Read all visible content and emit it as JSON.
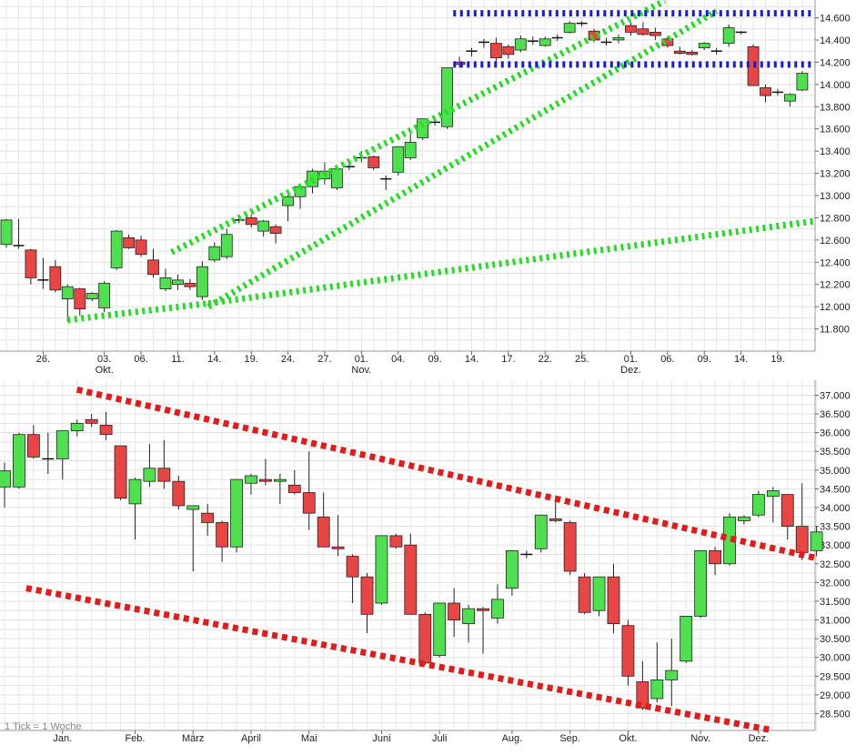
{
  "chart_data": [
    {
      "type": "candlestick",
      "title": "",
      "y_ticks": [
        "14.600",
        "14.400",
        "14.200",
        "14.000",
        "13.800",
        "13.600",
        "13.400",
        "13.200",
        "13.000",
        "12.800",
        "12.600",
        "12.400",
        "12.200",
        "12.000",
        "11.800"
      ],
      "ylim": [
        11600,
        14760
      ],
      "grid": true,
      "x_ticks": [
        {
          "label": "26.",
          "i": 3.0
        },
        {
          "label": "03.",
          "sublabel": "Okt.",
          "i": 8.0
        },
        {
          "label": "06.",
          "i": 11.0
        },
        {
          "label": "11.",
          "i": 14.0
        },
        {
          "label": "14.",
          "i": 17.0
        },
        {
          "label": "19.",
          "i": 20.0
        },
        {
          "label": "24.",
          "i": 23.0
        },
        {
          "label": "27.",
          "i": 26.0
        },
        {
          "label": "01.",
          "sublabel": "Nov.",
          "i": 29.0
        },
        {
          "label": "04.",
          "i": 32.0
        },
        {
          "label": "09.",
          "i": 35.0
        },
        {
          "label": "14.",
          "i": 38.0
        },
        {
          "label": "17.",
          "i": 41.0
        },
        {
          "label": "22.",
          "i": 44.0
        },
        {
          "label": "25.",
          "i": 47.0
        },
        {
          "label": "01.",
          "sublabel": "Dez.",
          "i": 51.0
        },
        {
          "label": "06.",
          "i": 54.0
        },
        {
          "label": "09.",
          "i": 57.0
        },
        {
          "label": "14.",
          "i": 60.0
        },
        {
          "label": "19.",
          "i": 63.0
        }
      ],
      "candles": [
        {
          "o": 12560,
          "h": 12790,
          "l": 12530,
          "c": 12780
        },
        {
          "o": 12550,
          "h": 12790,
          "l": 12520,
          "c": 12540
        },
        {
          "o": 12510,
          "h": 12520,
          "l": 12200,
          "c": 12260
        },
        {
          "o": 12240,
          "h": 12440,
          "l": 12160,
          "c": 12230
        },
        {
          "o": 12360,
          "h": 12420,
          "l": 12130,
          "c": 12150
        },
        {
          "o": 12070,
          "h": 12200,
          "l": 11870,
          "c": 12180
        },
        {
          "o": 12160,
          "h": 12170,
          "l": 11920,
          "c": 11980
        },
        {
          "o": 12070,
          "h": 12130,
          "l": 12050,
          "c": 12120
        },
        {
          "o": 11990,
          "h": 12230,
          "l": 11950,
          "c": 12210
        },
        {
          "o": 12350,
          "h": 12690,
          "l": 12330,
          "c": 12680
        },
        {
          "o": 12620,
          "h": 12650,
          "l": 12520,
          "c": 12530
        },
        {
          "o": 12600,
          "h": 12640,
          "l": 12450,
          "c": 12470
        },
        {
          "o": 12420,
          "h": 12520,
          "l": 12260,
          "c": 12290
        },
        {
          "o": 12160,
          "h": 12340,
          "l": 12140,
          "c": 12260
        },
        {
          "o": 12200,
          "h": 12290,
          "l": 12150,
          "c": 12240
        },
        {
          "o": 12210,
          "h": 12250,
          "l": 12150,
          "c": 12180
        },
        {
          "o": 12090,
          "h": 12410,
          "l": 12060,
          "c": 12360
        },
        {
          "o": 12420,
          "h": 12580,
          "l": 12400,
          "c": 12540
        },
        {
          "o": 12450,
          "h": 12700,
          "l": 12430,
          "c": 12650
        },
        {
          "o": 12780,
          "h": 12800,
          "l": 12750,
          "c": 12770
        },
        {
          "o": 12800,
          "h": 12830,
          "l": 12710,
          "c": 12740
        },
        {
          "o": 12680,
          "h": 12780,
          "l": 12630,
          "c": 12770
        },
        {
          "o": 12720,
          "h": 12740,
          "l": 12570,
          "c": 12660
        },
        {
          "o": 12910,
          "h": 13000,
          "l": 12770,
          "c": 12990
        },
        {
          "o": 12990,
          "h": 13100,
          "l": 12880,
          "c": 13080
        },
        {
          "o": 13080,
          "h": 13240,
          "l": 13020,
          "c": 13220
        },
        {
          "o": 13150,
          "h": 13300,
          "l": 13100,
          "c": 13220
        },
        {
          "o": 13070,
          "h": 13260,
          "l": 13050,
          "c": 13240
        },
        {
          "o": 13260,
          "h": 13290,
          "l": 13230,
          "c": 13260
        },
        {
          "o": 13330,
          "h": 13400,
          "l": 13300,
          "c": 13340
        },
        {
          "o": 13350,
          "h": 13360,
          "l": 13230,
          "c": 13250
        },
        {
          "o": 13150,
          "h": 13180,
          "l": 13050,
          "c": 13140
        },
        {
          "o": 13210,
          "h": 13440,
          "l": 13180,
          "c": 13440
        },
        {
          "o": 13340,
          "h": 13570,
          "l": 13320,
          "c": 13480
        },
        {
          "o": 13520,
          "h": 13690,
          "l": 13500,
          "c": 13690
        },
        {
          "o": 13660,
          "h": 13690,
          "l": 13630,
          "c": 13660
        },
        {
          "o": 13620,
          "h": 14150,
          "l": 13600,
          "c": 14150
        },
        {
          "o": 14200,
          "h": 14250,
          "l": 14150,
          "c": 14180
        },
        {
          "o": 14300,
          "h": 14330,
          "l": 14250,
          "c": 14300
        },
        {
          "o": 14370,
          "h": 14410,
          "l": 14330,
          "c": 14380
        },
        {
          "o": 14370,
          "h": 14420,
          "l": 14170,
          "c": 14240
        },
        {
          "o": 14340,
          "h": 14360,
          "l": 14230,
          "c": 14270
        },
        {
          "o": 14310,
          "h": 14440,
          "l": 14290,
          "c": 14410
        },
        {
          "o": 14390,
          "h": 14430,
          "l": 14360,
          "c": 14390
        },
        {
          "o": 14350,
          "h": 14430,
          "l": 14340,
          "c": 14410
        },
        {
          "o": 14410,
          "h": 14450,
          "l": 14390,
          "c": 14420
        },
        {
          "o": 14470,
          "h": 14570,
          "l": 14460,
          "c": 14550
        },
        {
          "o": 14540,
          "h": 14570,
          "l": 14520,
          "c": 14550
        },
        {
          "o": 14480,
          "h": 14500,
          "l": 14380,
          "c": 14400
        },
        {
          "o": 14380,
          "h": 14420,
          "l": 14350,
          "c": 14380
        },
        {
          "o": 14400,
          "h": 14450,
          "l": 14370,
          "c": 14420
        },
        {
          "o": 14530,
          "h": 14560,
          "l": 14440,
          "c": 14470
        },
        {
          "o": 14500,
          "h": 14560,
          "l": 14440,
          "c": 14450
        },
        {
          "o": 14470,
          "h": 14510,
          "l": 14400,
          "c": 14440
        },
        {
          "o": 14410,
          "h": 14430,
          "l": 14330,
          "c": 14350
        },
        {
          "o": 14300,
          "h": 14340,
          "l": 14270,
          "c": 14280
        },
        {
          "o": 14290,
          "h": 14310,
          "l": 14260,
          "c": 14270
        },
        {
          "o": 14330,
          "h": 14380,
          "l": 14310,
          "c": 14370
        },
        {
          "o": 14300,
          "h": 14330,
          "l": 14270,
          "c": 14300
        },
        {
          "o": 14370,
          "h": 14540,
          "l": 14340,
          "c": 14510
        },
        {
          "o": 14470,
          "h": 14480,
          "l": 14450,
          "c": 14460
        },
        {
          "o": 14340,
          "h": 14360,
          "l": 13990,
          "c": 13990
        },
        {
          "o": 13970,
          "h": 14000,
          "l": 13840,
          "c": 13900
        },
        {
          "o": 13930,
          "h": 13960,
          "l": 13900,
          "c": 13930
        },
        {
          "o": 13850,
          "h": 13920,
          "l": 13800,
          "c": 13910
        },
        {
          "o": 13950,
          "h": 14120,
          "l": 13940,
          "c": 14100
        }
      ],
      "trendlines": [
        {
          "color": "#22dd22",
          "x1": 13.5,
          "y1": 12490,
          "x2": 58.0,
          "y2": 14990
        },
        {
          "color": "#22dd22",
          "x1": 16.5,
          "y1": 12000,
          "x2": 58.0,
          "y2": 14660
        },
        {
          "color": "#22dd22",
          "x1": 5.0,
          "y1": 11880,
          "x2": 16.5,
          "y2": 12030
        },
        {
          "color": "#22dd22",
          "x1": 16.5,
          "y1": 12030,
          "x2": 68.0,
          "y2": 12800
        },
        {
          "color": "#1a1adc",
          "x1": 36.5,
          "y1": 14640,
          "x2": 68.0,
          "y2": 14640
        },
        {
          "color": "#1a1adc",
          "x1": 36.5,
          "y1": 14180,
          "x2": 68.0,
          "y2": 14180
        }
      ]
    },
    {
      "type": "candlestick",
      "title": "",
      "note": "1 Tick = 1 Woche",
      "y_ticks": [
        "37.000",
        "36.500",
        "36.000",
        "35.500",
        "35.000",
        "34.500",
        "34.000",
        "33.500",
        "33.000",
        "32.500",
        "32.000",
        "31.500",
        "31.000",
        "30.500",
        "30.000",
        "29.500",
        "29.000",
        "28.500"
      ],
      "ylim": [
        28050,
        37400
      ],
      "grid": true,
      "x_ticks": [
        {
          "label": "Jan.",
          "i": 4.0
        },
        {
          "label": "Feb.",
          "i": 9.0
        },
        {
          "label": "März",
          "i": 13.0
        },
        {
          "label": "April",
          "i": 17.0
        },
        {
          "label": "Mai",
          "i": 21.0
        },
        {
          "label": "Juni",
          "i": 26.0
        },
        {
          "label": "Juli",
          "i": 30.0
        },
        {
          "label": "Aug.",
          "i": 35.0
        },
        {
          "label": "Sep.",
          "i": 39.0
        },
        {
          "label": "Okt.",
          "i": 43.0
        },
        {
          "label": "Nov.",
          "i": 48.0
        },
        {
          "label": "Dez.",
          "i": 52.0
        }
      ],
      "candles": [
        {
          "o": 34550,
          "h": 35200,
          "l": 34000,
          "c": 34980
        },
        {
          "o": 34550,
          "h": 36000,
          "l": 34500,
          "c": 35950
        },
        {
          "o": 35950,
          "h": 36200,
          "l": 35300,
          "c": 35350
        },
        {
          "o": 35300,
          "h": 36000,
          "l": 34900,
          "c": 35300
        },
        {
          "o": 35300,
          "h": 36050,
          "l": 34750,
          "c": 36050
        },
        {
          "o": 36050,
          "h": 36350,
          "l": 35900,
          "c": 36250
        },
        {
          "o": 36350,
          "h": 36500,
          "l": 36150,
          "c": 36250
        },
        {
          "o": 36200,
          "h": 36550,
          "l": 35800,
          "c": 35950
        },
        {
          "o": 35650,
          "h": 35650,
          "l": 34200,
          "c": 34250
        },
        {
          "o": 34100,
          "h": 34800,
          "l": 33150,
          "c": 34750
        },
        {
          "o": 34700,
          "h": 35700,
          "l": 34550,
          "c": 35050
        },
        {
          "o": 35050,
          "h": 35800,
          "l": 34500,
          "c": 34700
        },
        {
          "o": 34700,
          "h": 34850,
          "l": 33950,
          "c": 34050
        },
        {
          "o": 33950,
          "h": 34050,
          "l": 32300,
          "c": 34050
        },
        {
          "o": 33850,
          "h": 34100,
          "l": 33250,
          "c": 33600
        },
        {
          "o": 33600,
          "h": 33650,
          "l": 32550,
          "c": 32950
        },
        {
          "o": 32950,
          "h": 34750,
          "l": 32800,
          "c": 34750
        },
        {
          "o": 34650,
          "h": 34900,
          "l": 34350,
          "c": 34850
        },
        {
          "o": 34750,
          "h": 35300,
          "l": 34600,
          "c": 34700
        },
        {
          "o": 34700,
          "h": 34900,
          "l": 34100,
          "c": 34750
        },
        {
          "o": 34600,
          "h": 35000,
          "l": 34350,
          "c": 34400
        },
        {
          "o": 34400,
          "h": 35500,
          "l": 33400,
          "c": 33850
        },
        {
          "o": 33750,
          "h": 34400,
          "l": 32950,
          "c": 32950
        },
        {
          "o": 32950,
          "h": 33800,
          "l": 32700,
          "c": 32900
        },
        {
          "o": 32700,
          "h": 32750,
          "l": 31450,
          "c": 32150
        },
        {
          "o": 32150,
          "h": 32250,
          "l": 30650,
          "c": 31150
        },
        {
          "o": 31450,
          "h": 33250,
          "l": 31400,
          "c": 33250
        },
        {
          "o": 33250,
          "h": 33300,
          "l": 32900,
          "c": 32950
        },
        {
          "o": 33000,
          "h": 33300,
          "l": 31150,
          "c": 31150
        },
        {
          "o": 31150,
          "h": 31200,
          "l": 29800,
          "c": 29850
        },
        {
          "o": 30050,
          "h": 31450,
          "l": 30000,
          "c": 31450
        },
        {
          "o": 31450,
          "h": 31850,
          "l": 30550,
          "c": 31000
        },
        {
          "o": 30900,
          "h": 31400,
          "l": 30400,
          "c": 31300
        },
        {
          "o": 31300,
          "h": 31350,
          "l": 30100,
          "c": 31250
        },
        {
          "o": 31050,
          "h": 31950,
          "l": 30900,
          "c": 31550
        },
        {
          "o": 31850,
          "h": 32850,
          "l": 31650,
          "c": 32850
        },
        {
          "o": 32750,
          "h": 32850,
          "l": 32650,
          "c": 32750
        },
        {
          "o": 32900,
          "h": 33800,
          "l": 32800,
          "c": 33800
        },
        {
          "o": 33700,
          "h": 34300,
          "l": 33600,
          "c": 33650
        },
        {
          "o": 33600,
          "h": 33650,
          "l": 32200,
          "c": 32300
        },
        {
          "o": 32150,
          "h": 32250,
          "l": 31150,
          "c": 31200
        },
        {
          "o": 31250,
          "h": 32150,
          "l": 31100,
          "c": 32150
        },
        {
          "o": 32150,
          "h": 32500,
          "l": 30650,
          "c": 30900
        },
        {
          "o": 30850,
          "h": 31000,
          "l": 29250,
          "c": 29500
        },
        {
          "o": 29350,
          "h": 29900,
          "l": 28600,
          "c": 28650
        },
        {
          "o": 28900,
          "h": 30400,
          "l": 28800,
          "c": 29400
        },
        {
          "o": 29400,
          "h": 30500,
          "l": 28700,
          "c": 29650
        },
        {
          "o": 29900,
          "h": 31100,
          "l": 29850,
          "c": 31100
        },
        {
          "o": 31100,
          "h": 32850,
          "l": 31050,
          "c": 32850
        },
        {
          "o": 32850,
          "h": 32950,
          "l": 32200,
          "c": 32500
        },
        {
          "o": 32500,
          "h": 33850,
          "l": 32450,
          "c": 33750
        },
        {
          "o": 33650,
          "h": 33800,
          "l": 33550,
          "c": 33750
        },
        {
          "o": 33800,
          "h": 34450,
          "l": 33750,
          "c": 34350
        },
        {
          "o": 34300,
          "h": 34550,
          "l": 33600,
          "c": 34450
        },
        {
          "o": 34350,
          "h": 34350,
          "l": 33150,
          "c": 33500
        },
        {
          "o": 33500,
          "h": 34650,
          "l": 32600,
          "c": 32800
        },
        {
          "o": 32850,
          "h": 33500,
          "l": 32700,
          "c": 33350
        }
      ],
      "trendlines": [
        {
          "color": "#e41b1b",
          "x1": 5.0,
          "y1": 37150,
          "x2": 56.0,
          "y2": 32650
        },
        {
          "color": "#e41b1b",
          "x1": 1.5,
          "y1": 31850,
          "x2": 53.0,
          "y2": 28050
        }
      ]
    }
  ]
}
